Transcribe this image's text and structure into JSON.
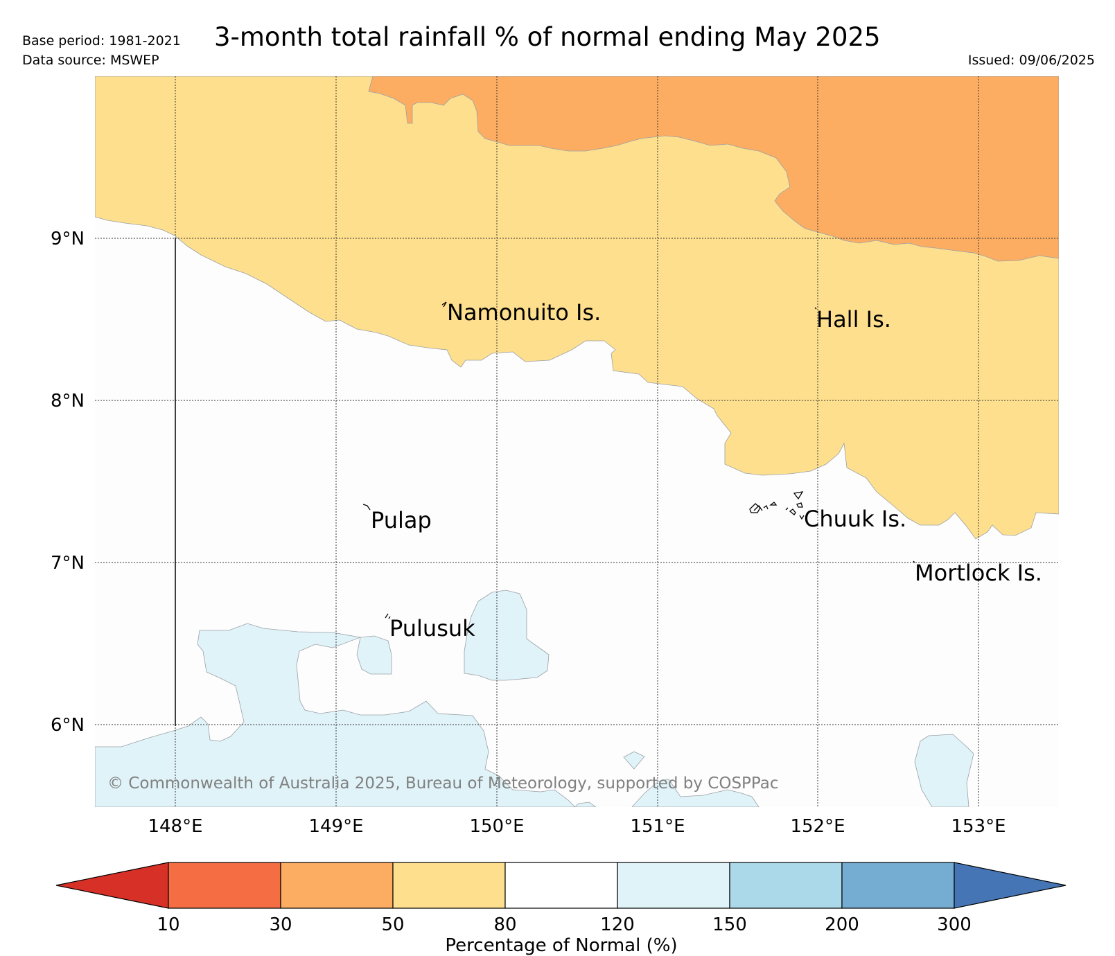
{
  "header": {
    "title": "3-month total rainfall % of normal ending May 2025",
    "base_period": "Base period: 1981-2021",
    "data_source": "Data source: MSWEP",
    "issued": "Issued: 09/06/2025"
  },
  "map": {
    "lat_ticks": [
      "9°N",
      "8°N",
      "7°N",
      "6°N"
    ],
    "lon_ticks": [
      "148°E",
      "149°E",
      "150°E",
      "151°E",
      "152°E",
      "153°E"
    ],
    "place_labels": [
      "Namonuito Is.",
      "Hall Is.",
      "Pulap",
      "Chuuk Is.",
      "Mortlock Is.",
      "Pulusuk"
    ],
    "copyright": "© Commonwealth of Australia 2025, Bureau of Meteorology, supported by COSPPac",
    "category_colors": {
      "30-50": "#fcad62",
      "50-80": "#fedf8d",
      "80-120": "#fdfdfd",
      "120-150": "#e0f3f8"
    }
  },
  "legend": {
    "title": "Percentage of Normal (%)",
    "tick_labels": [
      "10",
      "30",
      "50",
      "80",
      "120",
      "150",
      "200",
      "300"
    ],
    "colors": [
      "#d73027",
      "#f46d43",
      "#fcad62",
      "#fedf8d",
      "#ffffff",
      "#e0f3f8",
      "#abd9e9",
      "#74add1",
      "#4575b4"
    ]
  }
}
